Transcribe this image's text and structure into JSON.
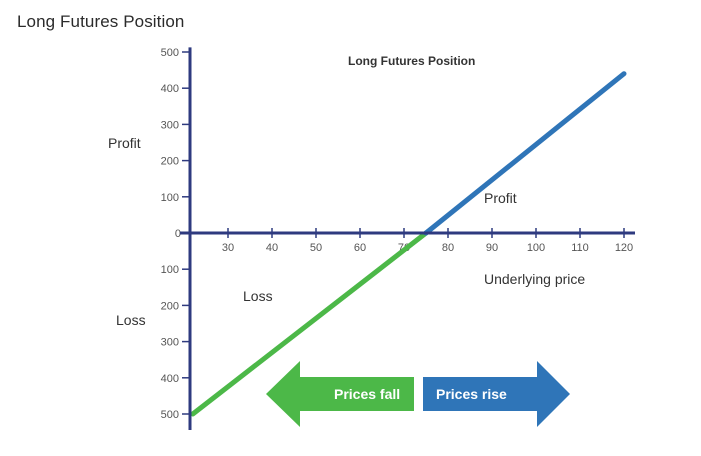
{
  "page": {
    "title": "Long Futures Position"
  },
  "chart_data": {
    "type": "line",
    "title": "Long Futures Position",
    "xlabel": "Underlying price",
    "ylabel": "",
    "x_ticks": [
      30,
      40,
      50,
      60,
      70,
      80,
      90,
      100,
      110,
      120
    ],
    "y_ticks_positive": [
      100,
      200,
      300,
      400,
      500
    ],
    "y_ticks_negative": [
      100,
      200,
      300,
      400,
      500
    ],
    "y_zero_label": "0",
    "xlim": [
      22,
      124
    ],
    "ylim": [
      -510,
      510
    ],
    "series": [
      {
        "name": "",
        "color": "#4cb848",
        "x": [
          22,
          75
        ],
        "y": [
          -500,
          0
        ]
      },
      {
        "name": "",
        "color": "#2f75b8",
        "x": [
          75,
          120
        ],
        "y": [
          0,
          440
        ]
      }
    ],
    "annotations": {
      "profit_axis": "Profit",
      "loss_axis": "Loss",
      "profit_region": "Profit",
      "loss_region": "Loss"
    },
    "arrows": [
      {
        "label": "Prices fall",
        "color": "#4cb848",
        "direction": "left"
      },
      {
        "label": "Prices rise",
        "color": "#2f75b8",
        "direction": "right"
      }
    ],
    "axis_color": "#2e3a7f"
  }
}
